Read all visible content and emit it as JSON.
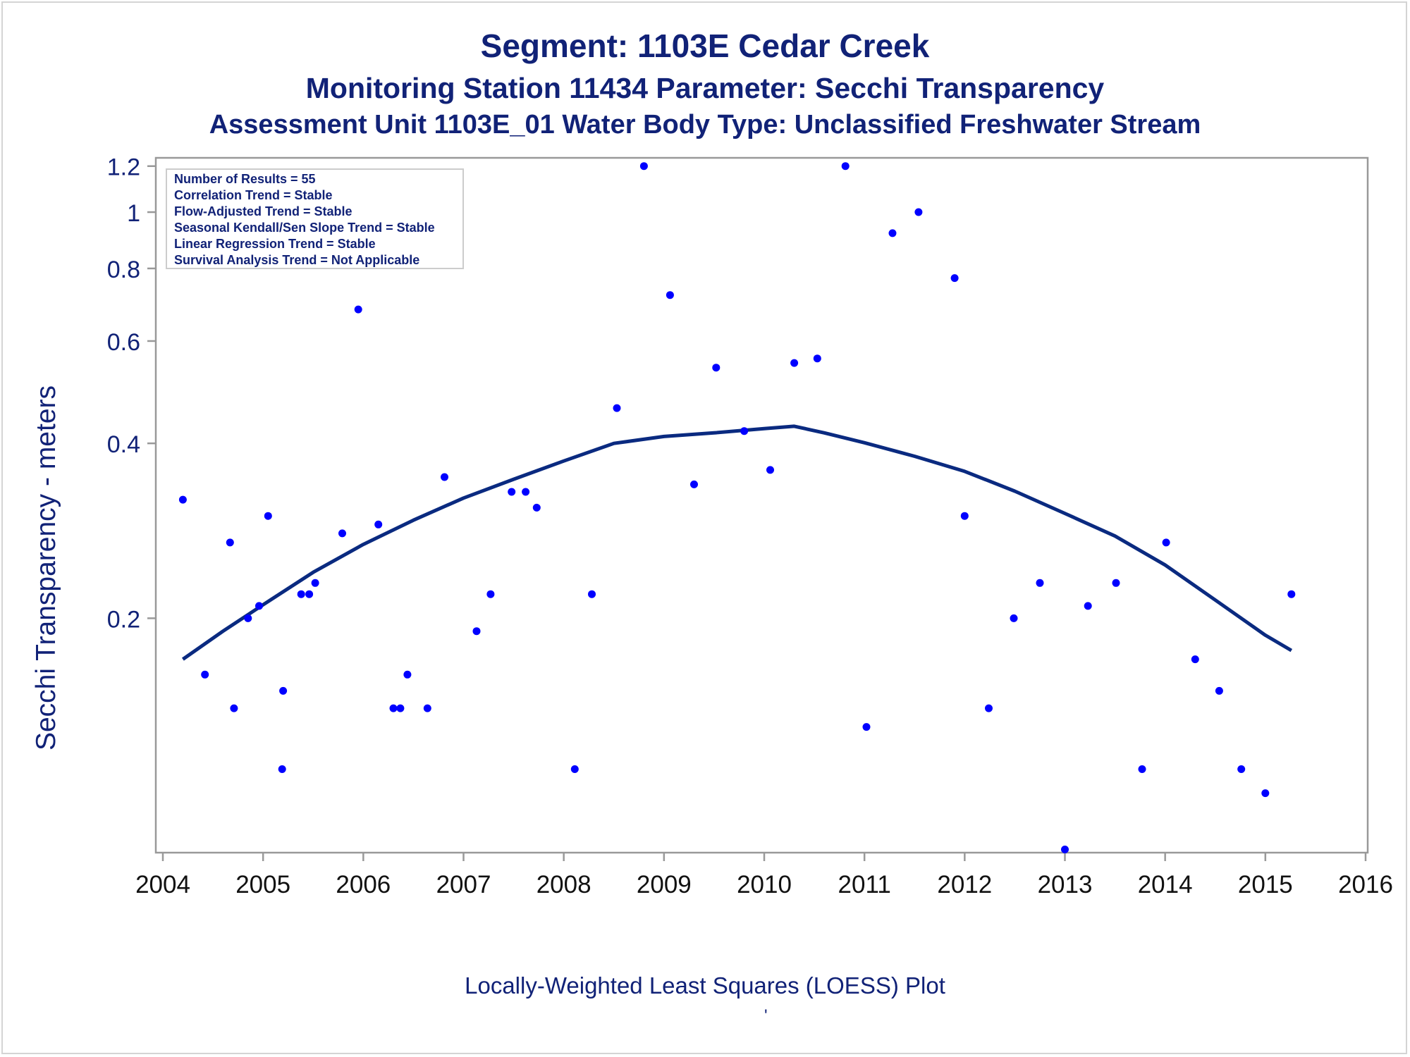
{
  "title": "Segment: 1103E  Cedar Creek",
  "subtitle": "Monitoring Station 11434 Parameter: Secchi Transparency",
  "subtitle2": "Assessment Unit 1103E_01   Water Body Type: Unclassified Freshwater Stream",
  "footer": "Locally-Weighted Least Squares (LOESS) Plot",
  "footnote": "'",
  "colors": {
    "text": "#112277",
    "points": "#0000ff",
    "curve": "#0a2a80",
    "axis": "#999999"
  },
  "chart_data": {
    "type": "scatter",
    "ylabel": "Secchi Transparency - meters",
    "xlabel": "",
    "y_scale": "log",
    "xlim": [
      2004,
      2016
    ],
    "ylim": [
      0.079,
      1.24
    ],
    "xticks": [
      2004,
      2005,
      2006,
      2007,
      2008,
      2009,
      2010,
      2011,
      2012,
      2013,
      2014,
      2015,
      2016
    ],
    "yticks": [
      0.2,
      0.4,
      0.6,
      0.8,
      1,
      1.2
    ],
    "ytick_labels": [
      "0.2",
      "0.4",
      "0.6",
      "0.8",
      "1",
      "1.2"
    ],
    "legend_box": [
      "Number of Results = 55",
      "Correlation Trend = Stable",
      "Flow-Adjusted Trend = Stable",
      "Seasonal Kendall/Sen Slope Trend = Stable",
      "Linear Regression Trend = Stable",
      "Survival Analysis Trend = Not Applicable"
    ],
    "points": [
      {
        "x": 2004.2,
        "y": 0.32
      },
      {
        "x": 2004.42,
        "y": 0.16
      },
      {
        "x": 2004.67,
        "y": 0.27
      },
      {
        "x": 2004.71,
        "y": 0.14
      },
      {
        "x": 2004.85,
        "y": 0.2
      },
      {
        "x": 2004.96,
        "y": 0.21
      },
      {
        "x": 2005.05,
        "y": 0.3
      },
      {
        "x": 2005.2,
        "y": 0.15
      },
      {
        "x": 2005.19,
        "y": 0.11
      },
      {
        "x": 2005.38,
        "y": 0.22
      },
      {
        "x": 2005.46,
        "y": 0.22
      },
      {
        "x": 2005.52,
        "y": 0.23
      },
      {
        "x": 2005.79,
        "y": 0.28
      },
      {
        "x": 2005.95,
        "y": 0.68
      },
      {
        "x": 2006.15,
        "y": 0.29
      },
      {
        "x": 2006.3,
        "y": 0.14
      },
      {
        "x": 2006.37,
        "y": 0.14
      },
      {
        "x": 2006.44,
        "y": 0.16
      },
      {
        "x": 2006.64,
        "y": 0.14
      },
      {
        "x": 2006.81,
        "y": 0.35
      },
      {
        "x": 2007.13,
        "y": 0.19
      },
      {
        "x": 2007.27,
        "y": 0.22
      },
      {
        "x": 2007.48,
        "y": 0.33
      },
      {
        "x": 2007.62,
        "y": 0.33
      },
      {
        "x": 2007.73,
        "y": 0.31
      },
      {
        "x": 2008.11,
        "y": 0.11
      },
      {
        "x": 2008.28,
        "y": 0.22
      },
      {
        "x": 2008.53,
        "y": 0.46
      },
      {
        "x": 2008.8,
        "y": 1.2
      },
      {
        "x": 2009.06,
        "y": 0.72
      },
      {
        "x": 2009.3,
        "y": 0.34
      },
      {
        "x": 2009.52,
        "y": 0.54
      },
      {
        "x": 2009.8,
        "y": 0.42
      },
      {
        "x": 2010.06,
        "y": 0.36
      },
      {
        "x": 2010.3,
        "y": 0.55
      },
      {
        "x": 2010.53,
        "y": 0.56
      },
      {
        "x": 2010.81,
        "y": 1.2
      },
      {
        "x": 2011.02,
        "y": 0.13
      },
      {
        "x": 2011.28,
        "y": 0.92
      },
      {
        "x": 2011.54,
        "y": 1.0
      },
      {
        "x": 2011.9,
        "y": 0.77
      },
      {
        "x": 2012.0,
        "y": 0.3
      },
      {
        "x": 2012.24,
        "y": 0.14
      },
      {
        "x": 2012.49,
        "y": 0.2
      },
      {
        "x": 2012.75,
        "y": 0.23
      },
      {
        "x": 2013.0,
        "y": 0.08
      },
      {
        "x": 2013.23,
        "y": 0.21
      },
      {
        "x": 2013.51,
        "y": 0.23
      },
      {
        "x": 2013.77,
        "y": 0.11
      },
      {
        "x": 2014.01,
        "y": 0.27
      },
      {
        "x": 2014.3,
        "y": 0.17
      },
      {
        "x": 2014.54,
        "y": 0.15
      },
      {
        "x": 2014.76,
        "y": 0.11
      },
      {
        "x": 2015.0,
        "y": 0.1
      },
      {
        "x": 2015.26,
        "y": 0.22
      }
    ],
    "loess": [
      {
        "x": 2004.2,
        "y": 0.17
      },
      {
        "x": 2004.6,
        "y": 0.19
      },
      {
        "x": 2005.0,
        "y": 0.211
      },
      {
        "x": 2005.5,
        "y": 0.24
      },
      {
        "x": 2006.0,
        "y": 0.268
      },
      {
        "x": 2006.5,
        "y": 0.295
      },
      {
        "x": 2007.0,
        "y": 0.322
      },
      {
        "x": 2007.5,
        "y": 0.347
      },
      {
        "x": 2008.0,
        "y": 0.373
      },
      {
        "x": 2008.5,
        "y": 0.4
      },
      {
        "x": 2009.0,
        "y": 0.411
      },
      {
        "x": 2009.5,
        "y": 0.417
      },
      {
        "x": 2010.0,
        "y": 0.424
      },
      {
        "x": 2010.3,
        "y": 0.428
      },
      {
        "x": 2010.6,
        "y": 0.417
      },
      {
        "x": 2011.0,
        "y": 0.401
      },
      {
        "x": 2011.5,
        "y": 0.38
      },
      {
        "x": 2012.0,
        "y": 0.358
      },
      {
        "x": 2012.5,
        "y": 0.331
      },
      {
        "x": 2013.0,
        "y": 0.303
      },
      {
        "x": 2013.5,
        "y": 0.277
      },
      {
        "x": 2014.0,
        "y": 0.247
      },
      {
        "x": 2014.5,
        "y": 0.215
      },
      {
        "x": 2015.0,
        "y": 0.187
      },
      {
        "x": 2015.26,
        "y": 0.176
      }
    ]
  }
}
